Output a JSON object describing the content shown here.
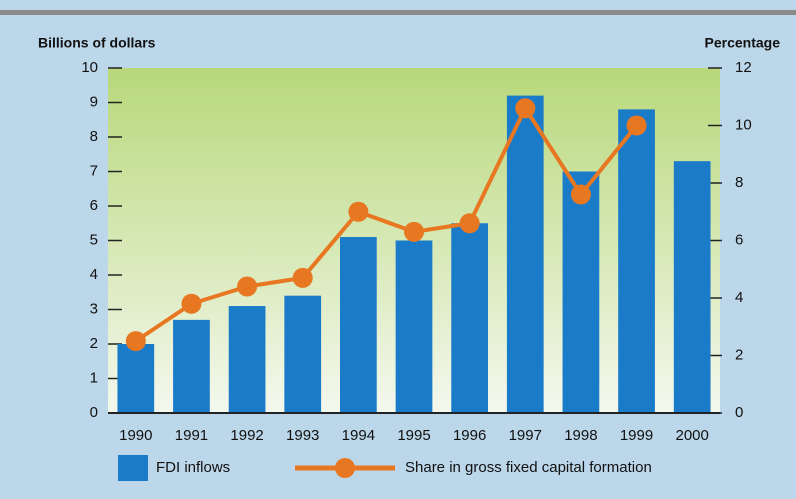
{
  "chart_data": {
    "type": "bar",
    "y_axis_label": "Billions of dollars",
    "y2_axis_label": "Percentage",
    "categories": [
      "1990",
      "1991",
      "1992",
      "1993",
      "1994",
      "1995",
      "1996",
      "1997",
      "1998",
      "1999",
      "2000"
    ],
    "series": [
      {
        "name": "FDI inflows",
        "type": "bar",
        "color": "#1a7bc9",
        "values": [
          2.0,
          2.7,
          3.1,
          3.4,
          5.1,
          5.0,
          5.5,
          9.2,
          7.0,
          8.8,
          7.3
        ]
      },
      {
        "name": "Share in gross fixed capital formation",
        "type": "line",
        "axis": "y2",
        "color": "#e87722",
        "values": [
          2.5,
          3.8,
          4.4,
          4.7,
          7.0,
          6.3,
          6.6,
          10.6,
          7.6,
          10.0,
          null
        ]
      }
    ],
    "ylim": [
      0,
      10
    ],
    "yticks": [
      0,
      1,
      2,
      3,
      4,
      5,
      6,
      7,
      8,
      9,
      10
    ],
    "y2lim": [
      0,
      12
    ],
    "y2ticks": [
      0,
      2,
      4,
      6,
      8,
      10,
      12
    ],
    "legend": "bottom"
  }
}
